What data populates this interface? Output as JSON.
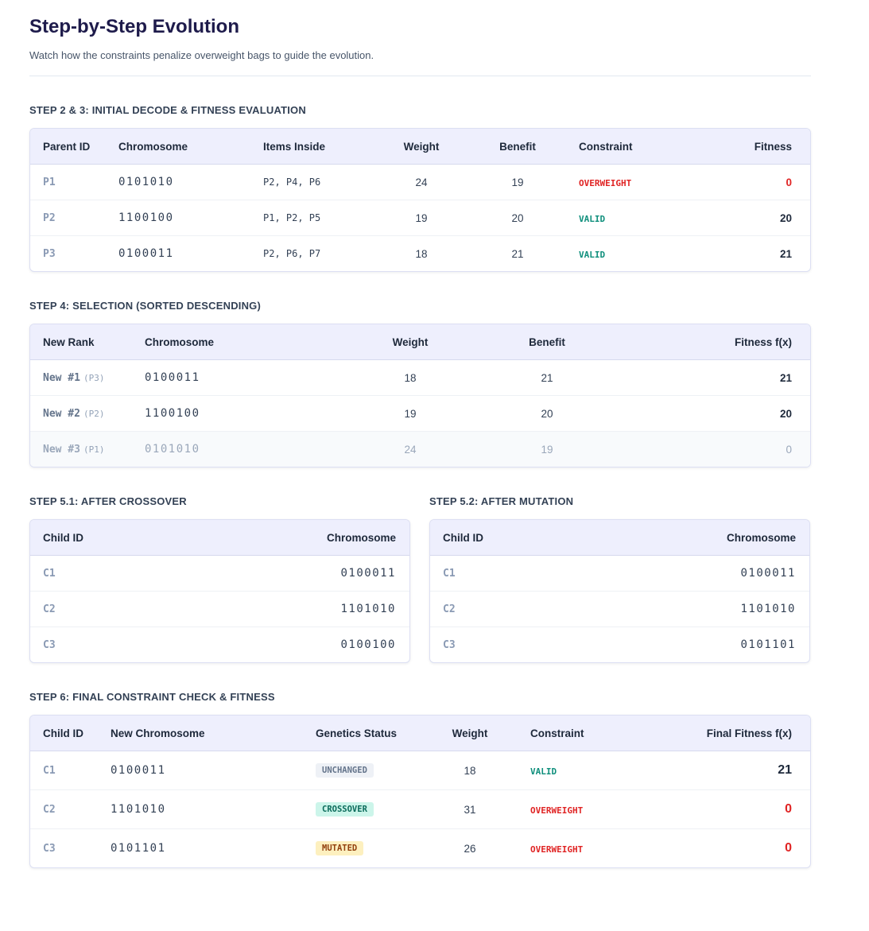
{
  "header": {
    "title": "Step-by-Step Evolution",
    "subtitle": "Watch how the constraints penalize overweight bags to guide the evolution."
  },
  "colors": {
    "accent": "#1e1b4b",
    "valid": "#0f8f7c",
    "overweight": "#e02424",
    "header_bg": "#eeeffd"
  },
  "step23": {
    "title": "STEP 2 & 3: INITIAL DECODE & FITNESS EVALUATION",
    "columns": [
      "Parent ID",
      "Chromosome",
      "Items Inside",
      "Weight",
      "Benefit",
      "Constraint",
      "Fitness"
    ],
    "rows": [
      {
        "id": "P1",
        "chromosome": "0101010",
        "items": "P2, P4, P6",
        "weight": "24",
        "benefit": "19",
        "constraint": "OVERWEIGHT",
        "fitness": "0"
      },
      {
        "id": "P2",
        "chromosome": "1100100",
        "items": "P1, P2, P5",
        "weight": "19",
        "benefit": "20",
        "constraint": "VALID",
        "fitness": "20"
      },
      {
        "id": "P3",
        "chromosome": "0100011",
        "items": "P2, P6, P7",
        "weight": "18",
        "benefit": "21",
        "constraint": "VALID",
        "fitness": "21"
      }
    ]
  },
  "step4": {
    "title": "STEP 4: SELECTION (SORTED DESCENDING)",
    "columns": [
      "New Rank",
      "Chromosome",
      "Weight",
      "Benefit",
      "Fitness f(x)"
    ],
    "rows": [
      {
        "rank": "New #1",
        "source": "(P3)",
        "chromosome": "0100011",
        "weight": "18",
        "benefit": "21",
        "fitness": "21"
      },
      {
        "rank": "New #2",
        "source": "(P2)",
        "chromosome": "1100100",
        "weight": "19",
        "benefit": "20",
        "fitness": "20"
      },
      {
        "rank": "New #3",
        "source": "(P1)",
        "chromosome": "0101010",
        "weight": "24",
        "benefit": "19",
        "fitness": "0"
      }
    ]
  },
  "step51": {
    "title": "STEP 5.1: AFTER CROSSOVER",
    "columns": [
      "Child ID",
      "Chromosome"
    ],
    "rows": [
      {
        "id": "C1",
        "chromosome": "0100011"
      },
      {
        "id": "C2",
        "chromosome": "1101010"
      },
      {
        "id": "C3",
        "chromosome": "0100100"
      }
    ]
  },
  "step52": {
    "title": "STEP 5.2: AFTER MUTATION",
    "columns": [
      "Child ID",
      "Chromosome"
    ],
    "rows": [
      {
        "id": "C1",
        "chromosome": "0100011"
      },
      {
        "id": "C2",
        "chromosome": "1101010"
      },
      {
        "id": "C3",
        "chromosome": "0101101"
      }
    ]
  },
  "step6": {
    "title": "STEP 6: FINAL CONSTRAINT CHECK & FITNESS",
    "columns": [
      "Child ID",
      "New Chromosome",
      "Genetics Status",
      "Weight",
      "Constraint",
      "Final Fitness f(x)"
    ],
    "rows": [
      {
        "id": "C1",
        "chromosome": "0100011",
        "status": "UNCHANGED",
        "weight": "18",
        "constraint": "VALID",
        "fitness": "21"
      },
      {
        "id": "C2",
        "chromosome": "1101010",
        "status": "CROSSOVER",
        "weight": "31",
        "constraint": "OVERWEIGHT",
        "fitness": "0"
      },
      {
        "id": "C3",
        "chromosome": "0101101",
        "status": "MUTATED",
        "weight": "26",
        "constraint": "OVERWEIGHT",
        "fitness": "0"
      }
    ]
  }
}
